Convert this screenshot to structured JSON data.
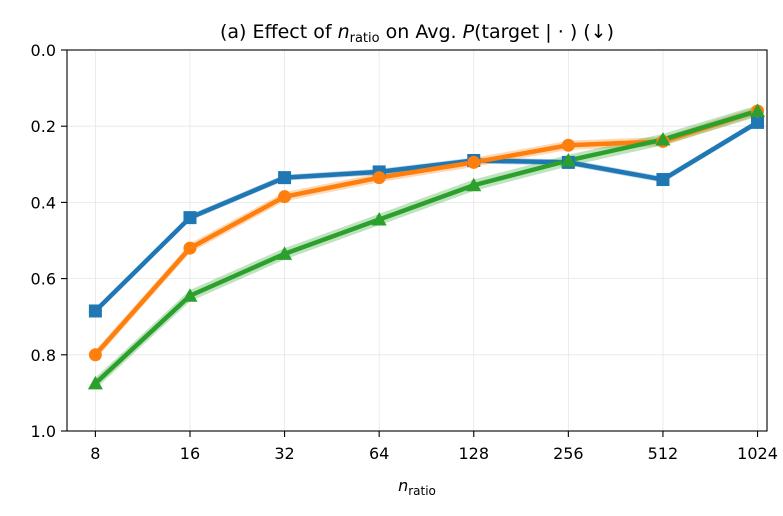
{
  "chart_data": {
    "type": "line",
    "title_prefix": "(a) Effect of ",
    "title_var": "n",
    "title_var_sub": "ratio",
    "title_mid": " on Avg. ",
    "title_P": "P",
    "title_suffix": "(target | · ) (↓)",
    "xlabel_var": "n",
    "xlabel_sub": "ratio",
    "ylabel": "",
    "categories": [
      "8",
      "16",
      "32",
      "64",
      "128",
      "256",
      "512",
      "1024"
    ],
    "ylim": [
      0.0,
      1.0
    ],
    "y_inverted": true,
    "yticks": [
      "0.0",
      "0.2",
      "0.4",
      "0.6",
      "0.8",
      "1.0"
    ],
    "ytick_values": [
      0.0,
      0.2,
      0.4,
      0.6,
      0.8,
      1.0
    ],
    "grid": true,
    "legend": "none",
    "series": [
      {
        "color": "#1f77b4",
        "marker": "square",
        "values": [
          0.685,
          0.44,
          0.335,
          0.32,
          0.29,
          0.295,
          0.34,
          0.19
        ],
        "band": 0.008
      },
      {
        "color": "#ff7f0e",
        "marker": "circle",
        "values": [
          0.8,
          0.52,
          0.385,
          0.335,
          0.295,
          0.25,
          0.24,
          0.16
        ],
        "band": 0.012
      },
      {
        "color": "#2ca02c",
        "marker": "triangle",
        "values": [
          0.875,
          0.645,
          0.535,
          0.445,
          0.355,
          0.29,
          0.235,
          0.16
        ],
        "band": 0.015
      }
    ]
  }
}
